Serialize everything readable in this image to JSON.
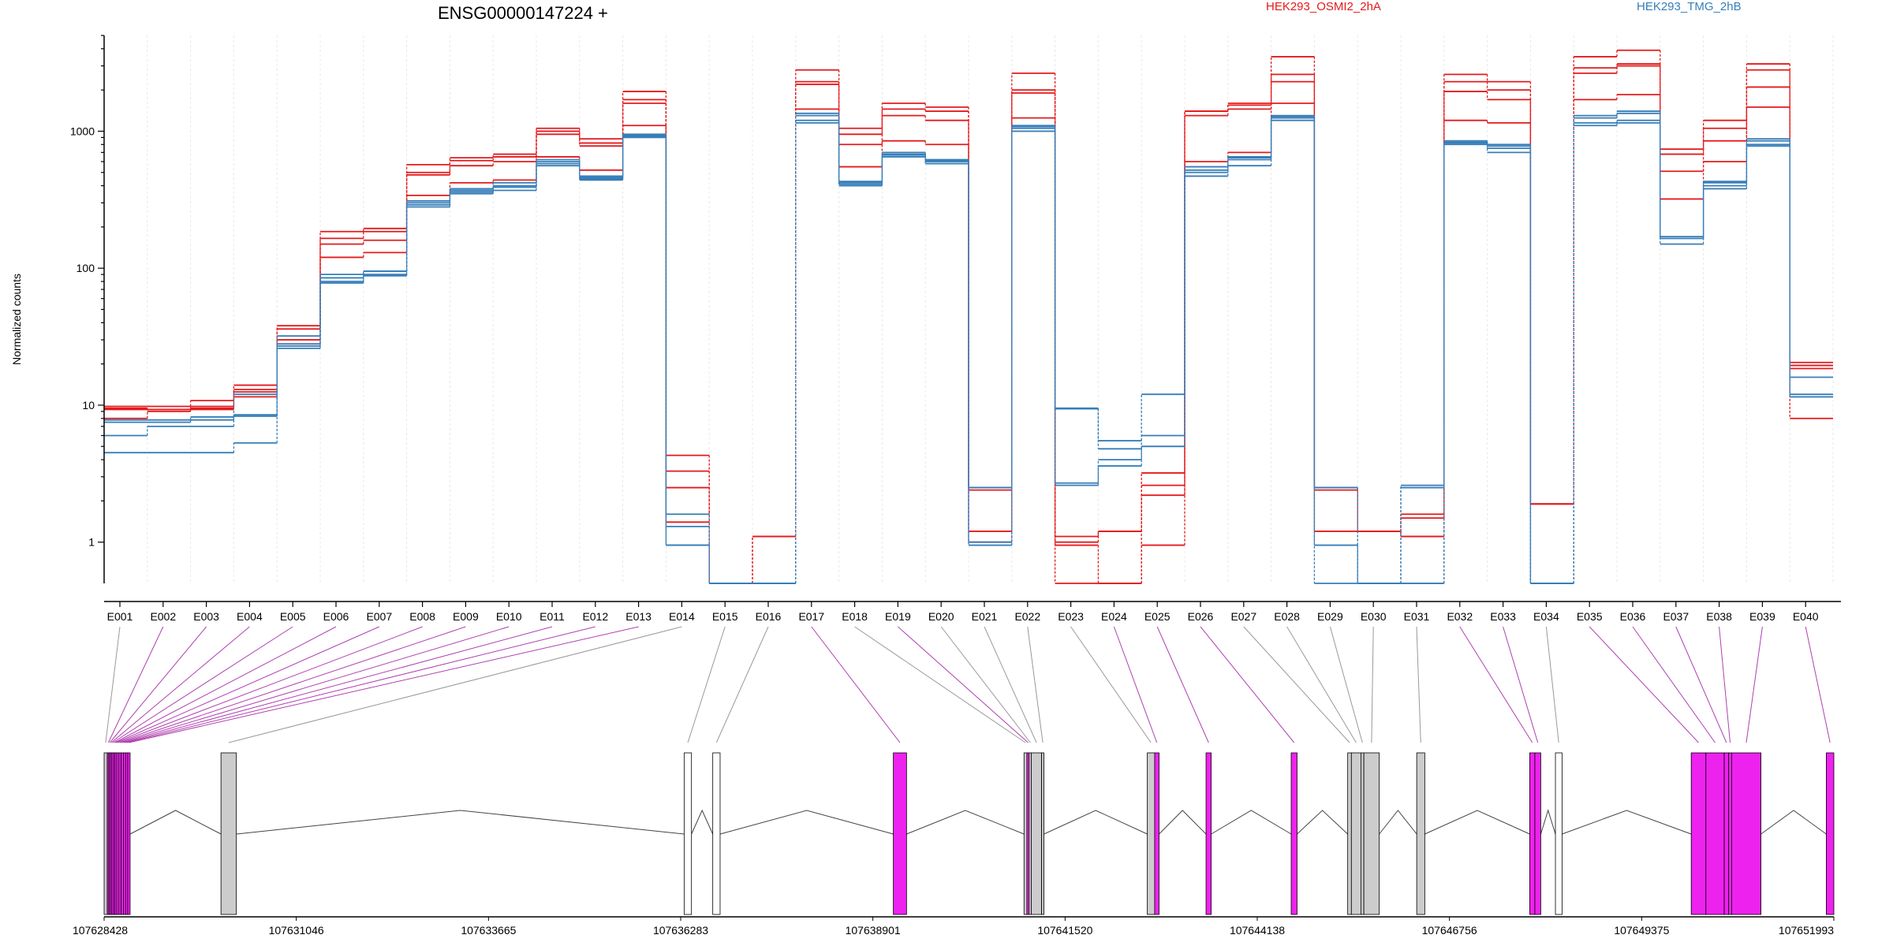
{
  "chart_data": {
    "type": "line",
    "title": "ENSG00000147224 +",
    "ylabel": "Normalized counts",
    "xlabel": "",
    "y_scale": "log",
    "ylim": [
      0.5,
      5000
    ],
    "y_ticks": [
      1,
      10,
      100,
      1000
    ],
    "y_tick_labels": [
      "1",
      "10",
      "100",
      "1000"
    ],
    "categories": [
      "E001",
      "E002",
      "E003",
      "E004",
      "E005",
      "E006",
      "E007",
      "E008",
      "E009",
      "E010",
      "E011",
      "E012",
      "E013",
      "E014",
      "E015",
      "E016",
      "E017",
      "E018",
      "E019",
      "E020",
      "E021",
      "E022",
      "E023",
      "E024",
      "E025",
      "E026",
      "E027",
      "E028",
      "E029",
      "E030",
      "E031",
      "E032",
      "E033",
      "E034",
      "E035",
      "E036",
      "E037",
      "E038",
      "E039",
      "E040"
    ],
    "legend": [
      {
        "name": "HEK293_OSMI2_2hA",
        "color": "#e41a1c"
      },
      {
        "name": "HEK293_TMG_2hB",
        "color": "#377eb8"
      }
    ],
    "series": [
      {
        "name": "HEK293_OSMI2_2hA",
        "color": "#e41a1c",
        "values": [
          9.8,
          9.8,
          10.8,
          14,
          38,
          185,
          195,
          570,
          640,
          680,
          1050,
          880,
          1950,
          4.3,
          0.5,
          1.1,
          2800,
          1050,
          1600,
          1500,
          2.5,
          2650,
          1.1,
          1.2,
          3.2,
          1400,
          1600,
          3500,
          2.5,
          1.2,
          1.6,
          2600,
          2300,
          1.9,
          3500,
          3900,
          740,
          1200,
          3100,
          20.5
        ]
      },
      {
        "name": "HEK293_OSMI2_2hA",
        "color": "#e41a1c",
        "values": [
          9.5,
          9.3,
          9.8,
          12.5,
          30,
          165,
          185,
          500,
          610,
          650,
          1000,
          820,
          1700,
          3.3,
          0.5,
          0.5,
          2300,
          800,
          1300,
          1200,
          1.2,
          2000,
          1.0,
          1.2,
          2.6,
          1400,
          1550,
          2600,
          2.5,
          1.2,
          1.1,
          1950,
          1700,
          1.9,
          2650,
          3100,
          510,
          850,
          2100,
          18.5
        ]
      },
      {
        "name": "HEK293_OSMI2_2hA",
        "color": "#e41a1c",
        "values": [
          8.0,
          9.0,
          9.3,
          11.5,
          28,
          120,
          130,
          340,
          420,
          440,
          650,
          520,
          1100,
          1.4,
          0.5,
          0.5,
          1450,
          550,
          850,
          800,
          1.0,
          1250,
          0.5,
          0.5,
          0.95,
          600,
          700,
          1600,
          1.2,
          1.2,
          1.1,
          1200,
          1150,
          1.9,
          1700,
          1850,
          320,
          600,
          1500,
          8.0
        ]
      },
      {
        "name": "HEK293_OSMI2_2hA",
        "color": "#e41a1c",
        "values": [
          9.3,
          9.3,
          9.5,
          13,
          36,
          150,
          160,
          480,
          560,
          600,
          950,
          780,
          1600,
          2.5,
          0.5,
          1.1,
          2200,
          950,
          1450,
          1400,
          2.4,
          1900,
          0.95,
          0.5,
          2.2,
          1300,
          1450,
          2300,
          2.4,
          1.2,
          1.5,
          2300,
          2000,
          1.9,
          2900,
          3000,
          680,
          1050,
          2800,
          19.5
        ]
      },
      {
        "name": "HEK293_TMG_2hB",
        "color": "#377eb8",
        "values": [
          7.5,
          7.5,
          7.8,
          8.5,
          28,
          85,
          95,
          300,
          370,
          400,
          620,
          470,
          950,
          1.6,
          0.5,
          0.5,
          1350,
          430,
          700,
          620,
          2.5,
          1100,
          9.5,
          4.8,
          6.0,
          550,
          650,
          1300,
          2.5,
          0.5,
          2.5,
          850,
          800,
          0.5,
          1300,
          1400,
          170,
          420,
          880,
          16
        ]
      },
      {
        "name": "HEK293_TMG_2hB",
        "color": "#377eb8",
        "values": [
          6.0,
          7.0,
          7.0,
          8.3,
          27,
          80,
          90,
          290,
          360,
          390,
          580,
          450,
          920,
          1.3,
          0.5,
          0.5,
          1200,
          410,
          670,
          600,
          1.0,
          1050,
          2.7,
          4.0,
          5.0,
          500,
          620,
          1250,
          0.95,
          0.5,
          0.5,
          820,
          750,
          0.5,
          1150,
          1200,
          165,
          400,
          800,
          11.5
        ]
      },
      {
        "name": "HEK293_TMG_2hB",
        "color": "#377eb8",
        "values": [
          4.5,
          4.5,
          4.5,
          5.3,
          26,
          78,
          88,
          280,
          350,
          370,
          560,
          440,
          900,
          0.95,
          0.5,
          0.5,
          1150,
          400,
          650,
          580,
          0.95,
          1000,
          2.6,
          3.6,
          5.0,
          470,
          560,
          1200,
          0.5,
          0.5,
          0.5,
          800,
          700,
          0.5,
          1100,
          1150,
          150,
          380,
          780,
          11.5
        ]
      },
      {
        "name": "HEK293_TMG_2hB",
        "color": "#377eb8",
        "values": [
          7.8,
          7.8,
          8.2,
          12,
          32,
          90,
          95,
          310,
          380,
          420,
          600,
          460,
          930,
          0.95,
          0.5,
          0.5,
          1300,
          420,
          680,
          610,
          2.5,
          1080,
          9.4,
          5.5,
          12,
          520,
          640,
          1280,
          2.5,
          0.5,
          2.6,
          830,
          780,
          0.5,
          1250,
          1350,
          165,
          430,
          850,
          12
        ]
      }
    ],
    "gene_model": {
      "coordinate_ticks": [
        107628428,
        107631046,
        107633665,
        107636283,
        107638901,
        107641520,
        107644138,
        107646756,
        107649375,
        107651993
      ],
      "coordinate_tick_labels": [
        "107628428",
        "107631046",
        "107633665",
        "107636283",
        "107638901",
        "107641520",
        "107644138",
        "107646756",
        "107649375",
        "107651993"
      ],
      "exon_color": "#ee22ee",
      "exons": [
        {
          "id": "E001",
          "start": 107628428,
          "end": 107628470,
          "significant": false
        },
        {
          "id": "E002",
          "start": 107628470,
          "end": 107628490,
          "significant": true
        },
        {
          "id": "E003",
          "start": 107628490,
          "end": 107628510,
          "significant": true
        },
        {
          "id": "E004",
          "start": 107628510,
          "end": 107628530,
          "significant": true
        },
        {
          "id": "E005",
          "start": 107628530,
          "end": 107628555,
          "significant": true
        },
        {
          "id": "E006",
          "start": 107628555,
          "end": 107628575,
          "significant": true
        },
        {
          "id": "E007",
          "start": 107628575,
          "end": 107628600,
          "significant": true
        },
        {
          "id": "E008",
          "start": 107628600,
          "end": 107628630,
          "significant": true
        },
        {
          "id": "E009",
          "start": 107628630,
          "end": 107628660,
          "significant": true
        },
        {
          "id": "E010",
          "start": 107628660,
          "end": 107628690,
          "significant": true
        },
        {
          "id": "E011",
          "start": 107628690,
          "end": 107628720,
          "significant": true
        },
        {
          "id": "E012",
          "start": 107628720,
          "end": 107628750,
          "significant": true
        },
        {
          "id": "E013",
          "start": 107628750,
          "end": 107628750,
          "significant": true
        },
        {
          "id": "E014",
          "start": 107630020,
          "end": 107630230,
          "significant": false
        },
        {
          "id": "E015",
          "start": 107636330,
          "end": 107636430,
          "significant": false
        },
        {
          "id": "E016",
          "start": 107636720,
          "end": 107636820,
          "significant": false
        },
        {
          "id": "E017",
          "start": 107639180,
          "end": 107639360,
          "significant": true
        },
        {
          "id": "E018",
          "start": 107640960,
          "end": 107641000,
          "significant": false
        },
        {
          "id": "E019",
          "start": 107641000,
          "end": 107641030,
          "significant": true
        },
        {
          "id": "E020",
          "start": 107641030,
          "end": 107641060,
          "significant": false
        },
        {
          "id": "E021",
          "start": 107641060,
          "end": 107641200,
          "significant": false
        },
        {
          "id": "E022",
          "start": 107641200,
          "end": 107641200,
          "significant": false
        },
        {
          "id": "E023",
          "start": 107642640,
          "end": 107642740,
          "significant": false
        },
        {
          "id": "E024",
          "start": 107642740,
          "end": 107642800,
          "significant": true
        },
        {
          "id": "E025",
          "start": 107643440,
          "end": 107643510,
          "significant": true
        },
        {
          "id": "E026",
          "start": 107644600,
          "end": 107644680,
          "significant": true
        },
        {
          "id": "E027",
          "start": 107645370,
          "end": 107645420,
          "significant": false
        },
        {
          "id": "E028",
          "start": 107645420,
          "end": 107645550,
          "significant": false
        },
        {
          "id": "E029",
          "start": 107645550,
          "end": 107645590,
          "significant": false
        },
        {
          "id": "E030",
          "start": 107645590,
          "end": 107645800,
          "significant": false
        },
        {
          "id": "E031",
          "start": 107646310,
          "end": 107646420,
          "significant": false
        },
        {
          "id": "E032",
          "start": 107647850,
          "end": 107647920,
          "significant": true
        },
        {
          "id": "E033",
          "start": 107647920,
          "end": 107648000,
          "significant": true
        },
        {
          "id": "E034",
          "start": 107648200,
          "end": 107648290,
          "significant": false
        },
        {
          "id": "E035",
          "start": 107650050,
          "end": 107650250,
          "significant": true
        },
        {
          "id": "E036",
          "start": 107650250,
          "end": 107650500,
          "significant": true
        },
        {
          "id": "E037",
          "start": 107650500,
          "end": 107650560,
          "significant": true
        },
        {
          "id": "E038",
          "start": 107650560,
          "end": 107650600,
          "significant": true
        },
        {
          "id": "E039",
          "start": 107650600,
          "end": 107651000,
          "significant": true
        },
        {
          "id": "E040",
          "start": 107651890,
          "end": 107651993,
          "significant": true
        }
      ]
    }
  }
}
